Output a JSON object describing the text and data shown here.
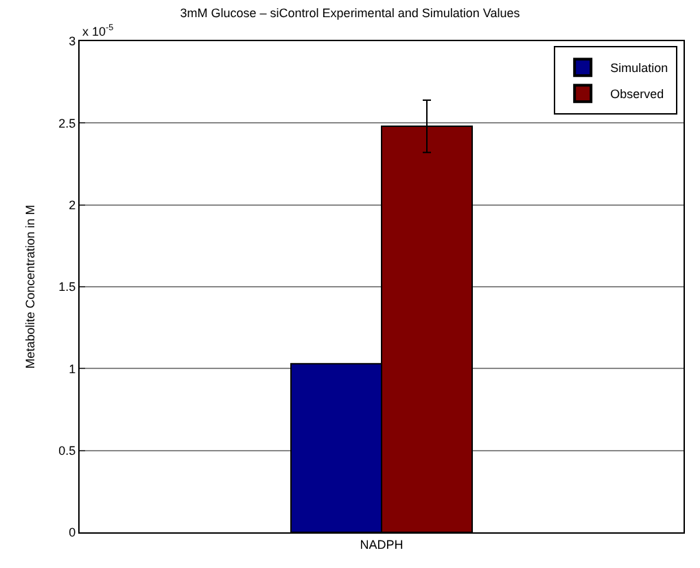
{
  "chart_data": {
    "type": "bar",
    "title": "3mM Glucose – siControl Experimental and Simulation Values",
    "ylabel": "Metabolite Concentration in M",
    "categories": [
      "NADPH"
    ],
    "series": [
      {
        "name": "Simulation",
        "color": "#00008b",
        "values": [
          1.03
        ]
      },
      {
        "name": "Observed",
        "color": "#800000",
        "values": [
          2.48
        ],
        "errors": [
          [
            2.32,
            2.64
          ]
        ]
      }
    ],
    "ylim": [
      0,
      3
    ],
    "yticks": [
      0,
      0.5,
      1,
      1.5,
      2,
      2.5,
      3
    ],
    "annotations": [
      "x 10$^{-5}$"
    ],
    "grid": "y",
    "legend": "top right"
  }
}
